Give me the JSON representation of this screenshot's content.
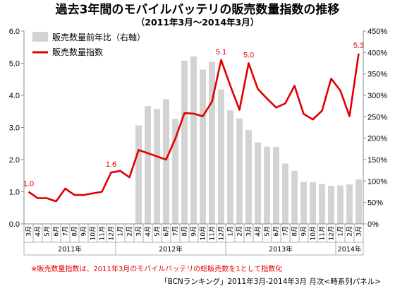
{
  "chart_data": {
    "type": "bar+line",
    "title": "過去3年間のモバイルバッテリの販売数量指数の推移",
    "subtitle": "（2011年3月～2014年3月）",
    "months": [
      "3月",
      "4月",
      "5月",
      "6月",
      "7月",
      "8月",
      "9月",
      "10月",
      "11月",
      "12月",
      "1月",
      "2月",
      "3月",
      "4月",
      "5月",
      "6月",
      "7月",
      "8月",
      "9月",
      "10月",
      "11月",
      "12月",
      "1月",
      "2月",
      "3月",
      "4月",
      "5月",
      "6月",
      "7月",
      "8月",
      "9月",
      "10月",
      "11月",
      "12月",
      "1月",
      "2月",
      "3月"
    ],
    "years": [
      {
        "label": "2011年",
        "start": 0,
        "end": 9
      },
      {
        "label": "2012年",
        "start": 10,
        "end": 21
      },
      {
        "label": "2013年",
        "start": 22,
        "end": 33
      },
      {
        "label": "2014年",
        "start": 34,
        "end": 36
      }
    ],
    "left_axis": {
      "min": 0,
      "max": 6,
      "ticks": [
        "0.0",
        "1.0",
        "2.0",
        "3.0",
        "4.0",
        "5.0",
        "6.0"
      ]
    },
    "right_axis": {
      "min": 0,
      "max": 450,
      "ticks": [
        "0%",
        "50%",
        "100%",
        "150%",
        "200%",
        "250%",
        "300%",
        "350%",
        "400%",
        "450%"
      ]
    },
    "series": [
      {
        "name": "販売数量前年比（右軸）",
        "kind": "bar",
        "axis": "right",
        "color": "#d3d3d3",
        "values": [
          null,
          null,
          null,
          null,
          null,
          null,
          null,
          null,
          null,
          null,
          null,
          null,
          230,
          275,
          268,
          291,
          245,
          381,
          391,
          360,
          378,
          314,
          265,
          246,
          219,
          190,
          180,
          180,
          141,
          124,
          98,
          97,
          93,
          89,
          90,
          92,
          104
        ]
      },
      {
        "name": "販売数量指数",
        "kind": "line",
        "axis": "left",
        "color": "#e00000",
        "values": [
          1.0,
          0.8,
          0.8,
          0.7,
          1.1,
          0.9,
          0.9,
          0.95,
          1.0,
          1.6,
          1.65,
          1.45,
          2.3,
          2.2,
          2.1,
          2.0,
          2.65,
          3.45,
          3.43,
          3.35,
          3.8,
          5.1,
          4.3,
          3.55,
          5.0,
          4.2,
          3.9,
          3.62,
          3.75,
          4.3,
          3.42,
          3.25,
          3.52,
          4.52,
          4.15,
          3.35,
          5.3
        ]
      }
    ],
    "annotations": [
      {
        "index": 0,
        "text": "1.0"
      },
      {
        "index": 9,
        "text": "1.6"
      },
      {
        "index": 21,
        "text": "5.1"
      },
      {
        "index": 24,
        "text": "5.0"
      },
      {
        "index": 36,
        "text": "5.3"
      }
    ],
    "legend_placement": "top-left",
    "grid": false,
    "footnote": "※販売数量指数は、2011年3月のモバイルバッテリの総販売数を1として指数化",
    "source": "「BCNランキング」2011年3月-2014年3月 月次<時系列パネル>"
  }
}
